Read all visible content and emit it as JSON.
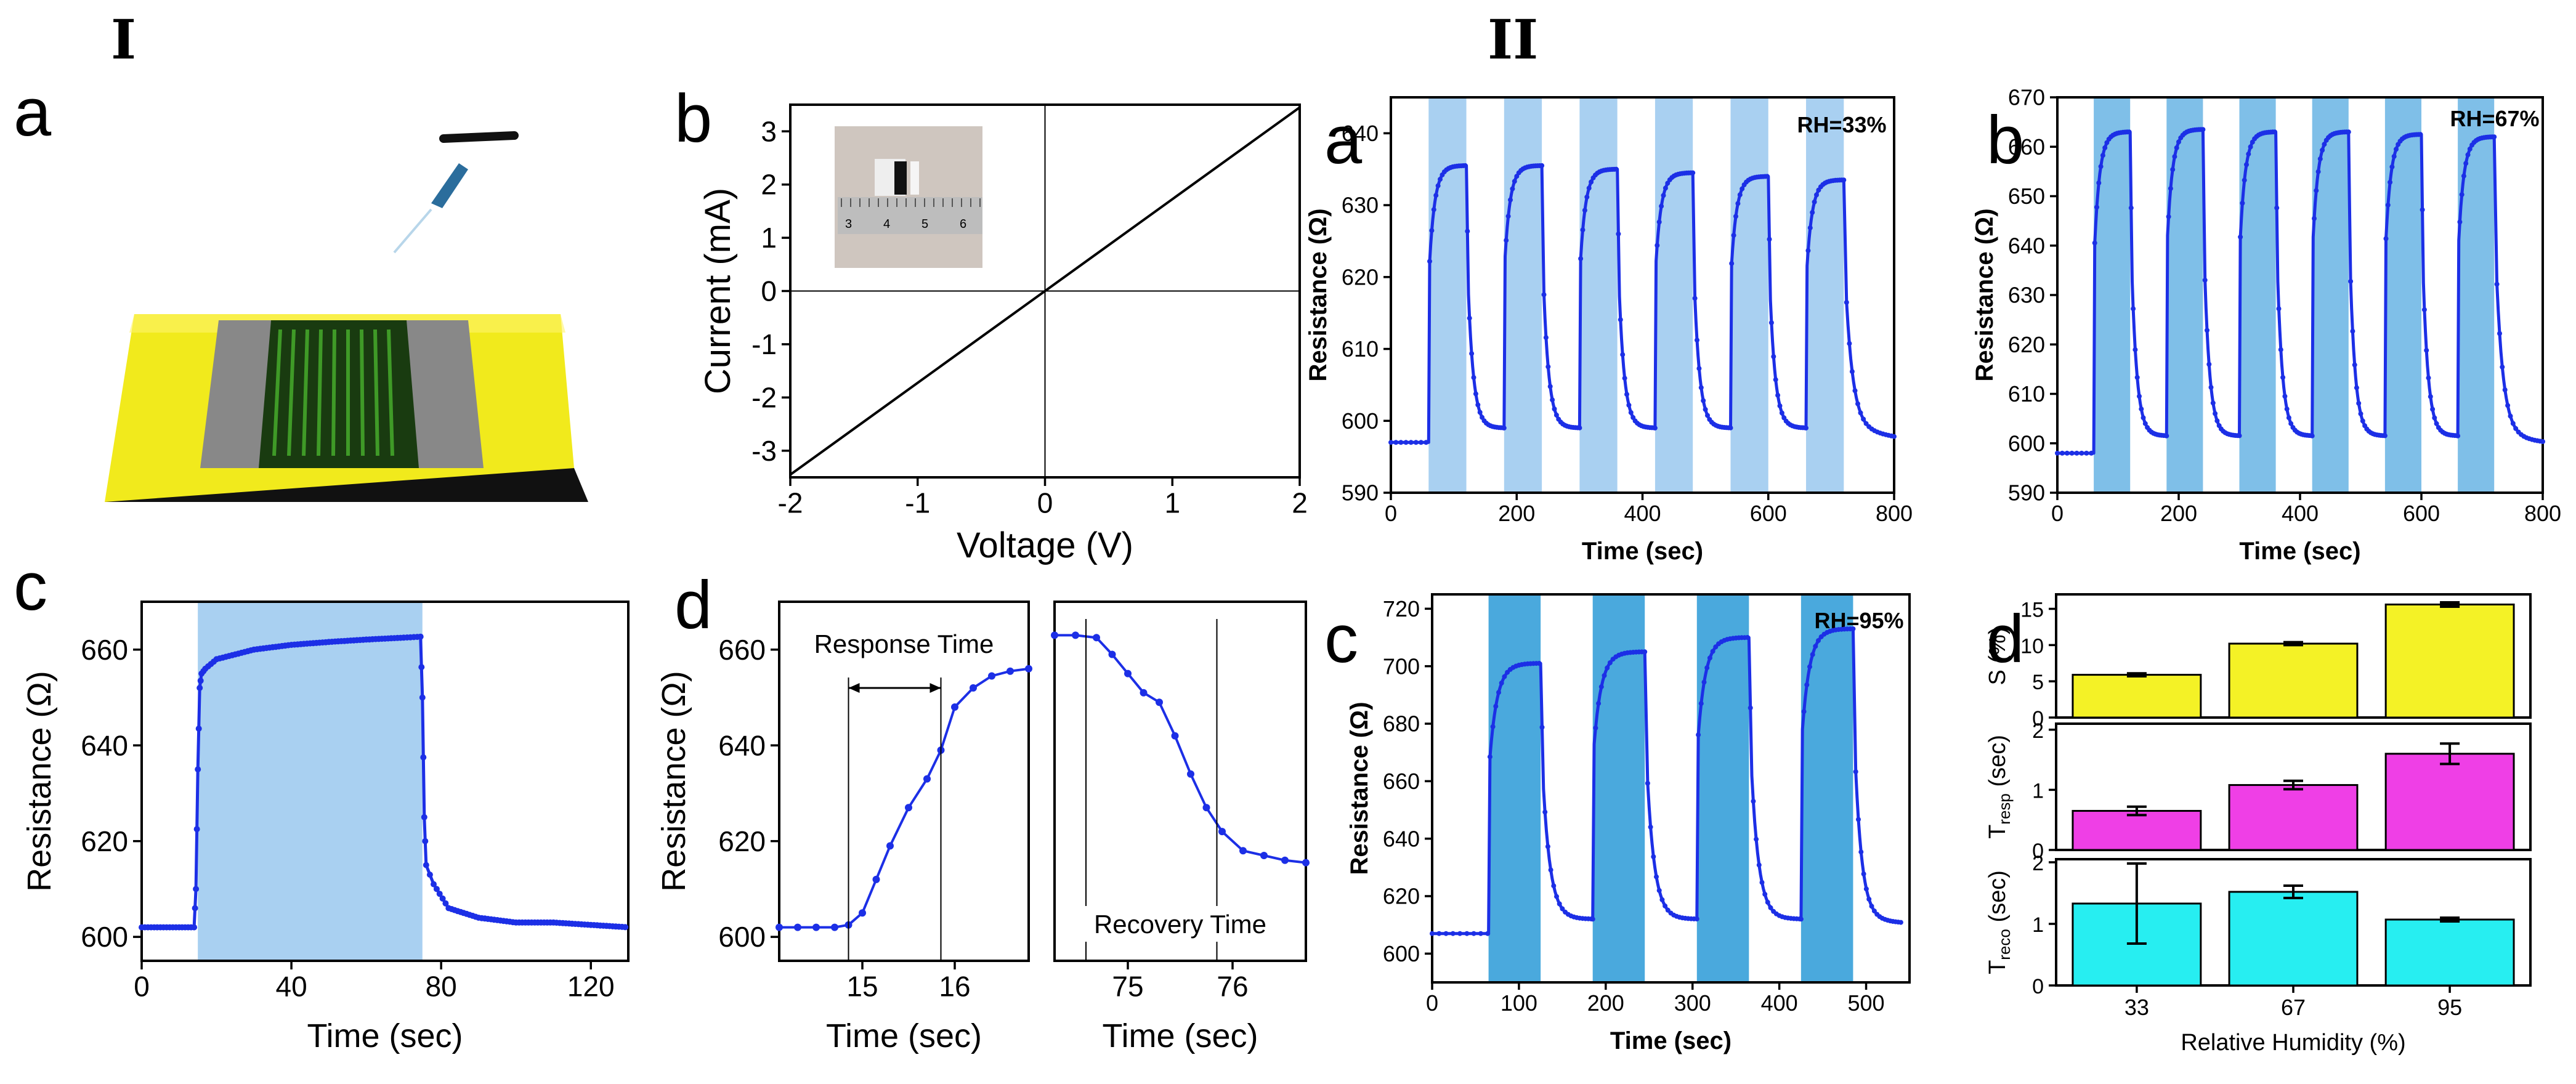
{
  "section_labels": {
    "left": "I",
    "right": "II"
  },
  "colors": {
    "blue": "#1c2fe6",
    "light_band": "#a9d0f1",
    "mid_band": "#7fbfe8",
    "dark_band": "#4aa9dd",
    "yellow": "#f4f226",
    "magenta": "#ef3fe6",
    "cyan": "#27eef1"
  },
  "chart_data": [
    {
      "id": "I-a",
      "type": "illustration",
      "panel": "a",
      "description": "device schematic"
    },
    {
      "id": "I-b",
      "type": "line",
      "panel": "b",
      "xlabel": "Voltage (V)",
      "ylabel": "Current (mA)",
      "xlim": [
        -2,
        2
      ],
      "ylim": [
        -3.5,
        3.5
      ],
      "xticks": [
        -2,
        -1,
        0,
        1,
        2
      ],
      "yticks": [
        -3,
        -2,
        -1,
        0,
        1,
        2,
        3
      ],
      "inset_ruler_labels": [
        "3",
        "4",
        "5",
        "6"
      ],
      "series": [
        {
          "name": "I-V",
          "x": [
            -2,
            2
          ],
          "y": [
            -3.45,
            3.45
          ]
        }
      ]
    },
    {
      "id": "I-c",
      "type": "line",
      "panel": "c",
      "xlabel": "Time (sec)",
      "ylabel": "Resistance (Ω)",
      "xlim": [
        0,
        130
      ],
      "ylim": [
        595,
        670
      ],
      "xticks": [
        0,
        40,
        80,
        120
      ],
      "yticks": [
        600,
        620,
        640,
        660
      ],
      "shaded": [
        [
          15,
          75
        ]
      ],
      "series": [
        {
          "name": "resistance",
          "x": [
            0,
            10,
            14,
            14.5,
            15,
            15.5,
            16,
            17,
            20,
            30,
            40,
            50,
            60,
            70,
            74.5,
            75,
            75.5,
            76,
            78,
            82,
            90,
            100,
            110,
            120,
            130
          ],
          "y": [
            602,
            602,
            602,
            610,
            635,
            652,
            655,
            656,
            658,
            660,
            661,
            661.6,
            662.1,
            662.5,
            662.7,
            650,
            625,
            615,
            611,
            606,
            604,
            603,
            603,
            602.5,
            602
          ]
        }
      ]
    },
    {
      "id": "I-d1",
      "type": "line",
      "panel": "d",
      "xlabel": "Time (sec)",
      "ylabel": "Resistance (Ω)",
      "xlim": [
        14.1,
        16.8
      ],
      "ylim": [
        595,
        670
      ],
      "xticks": [
        15,
        16
      ],
      "yticks": [
        600,
        620,
        640,
        660
      ],
      "annotations": [
        {
          "text": "Response Time",
          "x1": 14.85,
          "x2": 15.85
        }
      ],
      "series": [
        {
          "name": "response",
          "x": [
            14.1,
            14.3,
            14.5,
            14.7,
            14.85,
            15,
            15.15,
            15.3,
            15.5,
            15.7,
            15.85,
            16,
            16.2,
            16.4,
            16.6,
            16.8
          ],
          "y": [
            602,
            602,
            602,
            602,
            602.5,
            605,
            612,
            619,
            627,
            633,
            639,
            648,
            652,
            654.5,
            655.5,
            656
          ]
        }
      ]
    },
    {
      "id": "I-d2",
      "type": "line",
      "panel": "",
      "xlabel": "Time (sec)",
      "ylabel": "",
      "xlim": [
        74.3,
        76.7
      ],
      "ylim": [
        595,
        670
      ],
      "xticks": [
        75,
        76
      ],
      "yticks": [],
      "annotations": [
        {
          "text": "Recovery Time",
          "x1": 74.6,
          "x2": 75.85
        }
      ],
      "series": [
        {
          "name": "recovery",
          "x": [
            74.3,
            74.5,
            74.7,
            74.85,
            75,
            75.15,
            75.3,
            75.45,
            75.6,
            75.75,
            75.9,
            76.1,
            76.3,
            76.5,
            76.7
          ],
          "y": [
            663,
            663,
            662.5,
            659,
            655,
            651,
            649,
            642,
            634,
            627,
            622,
            618,
            617,
            616,
            615.5
          ]
        }
      ]
    },
    {
      "id": "II-a",
      "type": "line",
      "panel": "a",
      "xlabel": "Time (sec)",
      "ylabel": "Resistance (Ω)",
      "annotation": "RH=33%",
      "xlim": [
        0,
        800
      ],
      "ylim": [
        590,
        645
      ],
      "xticks": [
        0,
        200,
        400,
        600,
        800
      ],
      "yticks": [
        590,
        600,
        610,
        620,
        630,
        640
      ],
      "shaded": [
        [
          60,
          120
        ],
        [
          180,
          240
        ],
        [
          300,
          360
        ],
        [
          420,
          480
        ],
        [
          540,
          600
        ],
        [
          660,
          720
        ]
      ],
      "baseline": 597,
      "cycle_min": 599,
      "cycle_peaks": [
        635.5,
        635.5,
        635,
        634.5,
        634,
        633.5
      ],
      "series": [
        {
          "name": "RH=33%",
          "x_start": 0,
          "x_end": 800
        }
      ]
    },
    {
      "id": "II-b",
      "type": "line",
      "panel": "b",
      "xlabel": "Time (sec)",
      "ylabel": "Resistance (Ω)",
      "annotation": "RH=67%",
      "xlim": [
        0,
        800
      ],
      "ylim": [
        590,
        670
      ],
      "xticks": [
        0,
        200,
        400,
        600,
        800
      ],
      "yticks": [
        590,
        600,
        610,
        620,
        630,
        640,
        650,
        660,
        670
      ],
      "shaded": [
        [
          60,
          120
        ],
        [
          180,
          240
        ],
        [
          300,
          360
        ],
        [
          420,
          480
        ],
        [
          540,
          600
        ],
        [
          660,
          720
        ]
      ],
      "baseline": 598,
      "cycle_min": 601.5,
      "cycle_peaks": [
        663,
        663.5,
        663,
        663,
        662.5,
        662
      ],
      "series": [
        {
          "name": "RH=67%",
          "x_start": 0,
          "x_end": 800
        }
      ]
    },
    {
      "id": "II-c",
      "type": "line",
      "panel": "c",
      "xlabel": "Time (sec)",
      "ylabel": "Resistance (Ω)",
      "annotation": "RH=95%",
      "xlim": [
        0,
        550
      ],
      "ylim": [
        590,
        725
      ],
      "xticks": [
        0,
        100,
        200,
        300,
        400,
        500
      ],
      "yticks": [
        600,
        620,
        640,
        660,
        680,
        700,
        720
      ],
      "shaded": [
        [
          65,
          125
        ],
        [
          185,
          245
        ],
        [
          305,
          365
        ],
        [
          425,
          485
        ]
      ],
      "baseline": 607,
      "cycle_min": 612,
      "cycle_peaks": [
        701,
        705,
        710,
        713
      ],
      "series": [
        {
          "name": "RH=95%",
          "x_start": 0,
          "x_end": 540
        }
      ]
    },
    {
      "id": "II-d",
      "type": "bar",
      "panel": "d",
      "xlabel": "Relative Humidity (%)",
      "categories": [
        "33",
        "67",
        "95"
      ],
      "subplots": [
        {
          "ylabel": "S (%)",
          "ylim": [
            0,
            17
          ],
          "yticks": [
            0,
            5,
            10,
            15
          ],
          "values": [
            5.9,
            10.2,
            15.6
          ],
          "errors": [
            0.2,
            0.2,
            0.3
          ],
          "color": "#f4f226"
        },
        {
          "ylabel": "T",
          "ylabel_sub": "resp",
          "ylabel_unit": " (sec)",
          "ylim": [
            0,
            2.1
          ],
          "yticks": [
            0,
            1,
            2
          ],
          "values": [
            0.65,
            1.08,
            1.6
          ],
          "errors": [
            0.07,
            0.07,
            0.17
          ],
          "color": "#ef3fe6"
        },
        {
          "ylabel": "T",
          "ylabel_sub": "reco",
          "ylabel_unit": " (sec)",
          "ylim": [
            0,
            2.05
          ],
          "yticks": [
            0,
            1,
            2
          ],
          "values": [
            1.33,
            1.52,
            1.07
          ],
          "errors": [
            0.65,
            0.1,
            0.03
          ],
          "color": "#27eef1"
        }
      ]
    }
  ]
}
